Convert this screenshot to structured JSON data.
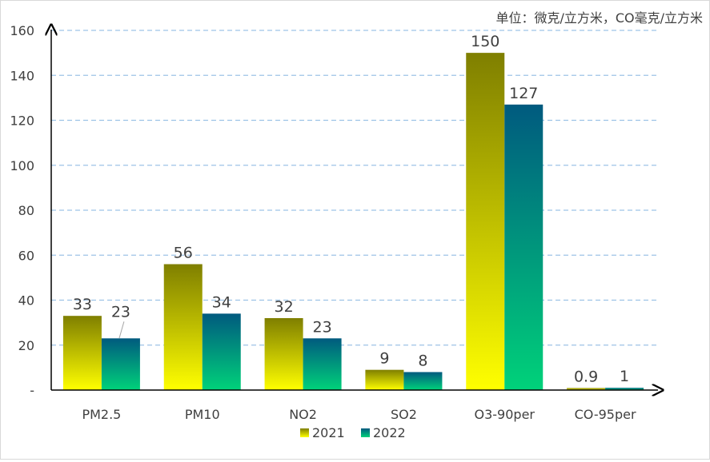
{
  "unit_note": "单位：微克/立方米，CO毫克/立方米",
  "colors": {
    "s2021_top": "#7f7f00",
    "s2021_bottom": "#ffff00",
    "s2022_top": "#005a7f",
    "s2022_bottom": "#00d27a",
    "grid": "#9dc3e6",
    "axis": "#000000",
    "text": "#404040"
  },
  "chart_data": {
    "type": "bar",
    "title": "",
    "xlabel": "",
    "ylabel": "",
    "categories": [
      "PM2.5",
      "PM10",
      "NO2",
      "SO2",
      "O3-90per",
      "CO-95per"
    ],
    "series": [
      {
        "name": "2021",
        "values": [
          33,
          56,
          32,
          9,
          150,
          0.9
        ],
        "labels": [
          "33",
          "56",
          "32",
          "9",
          "150",
          "0.9"
        ]
      },
      {
        "name": "2022",
        "values": [
          23,
          34,
          23,
          8,
          127,
          1
        ],
        "labels": [
          "23",
          "34",
          "23",
          "8",
          "127",
          "1"
        ]
      }
    ],
    "ylim": [
      0,
      160
    ],
    "yticks": [
      {
        "value": 0,
        "label": "-"
      },
      {
        "value": 20,
        "label": "20"
      },
      {
        "value": 40,
        "label": "40"
      },
      {
        "value": 60,
        "label": "60"
      },
      {
        "value": 80,
        "label": "80"
      },
      {
        "value": 100,
        "label": "100"
      },
      {
        "value": 120,
        "label": "120"
      },
      {
        "value": 140,
        "label": "140"
      },
      {
        "value": 160,
        "label": "160"
      }
    ],
    "grid": true,
    "legend": "bottom-center"
  }
}
